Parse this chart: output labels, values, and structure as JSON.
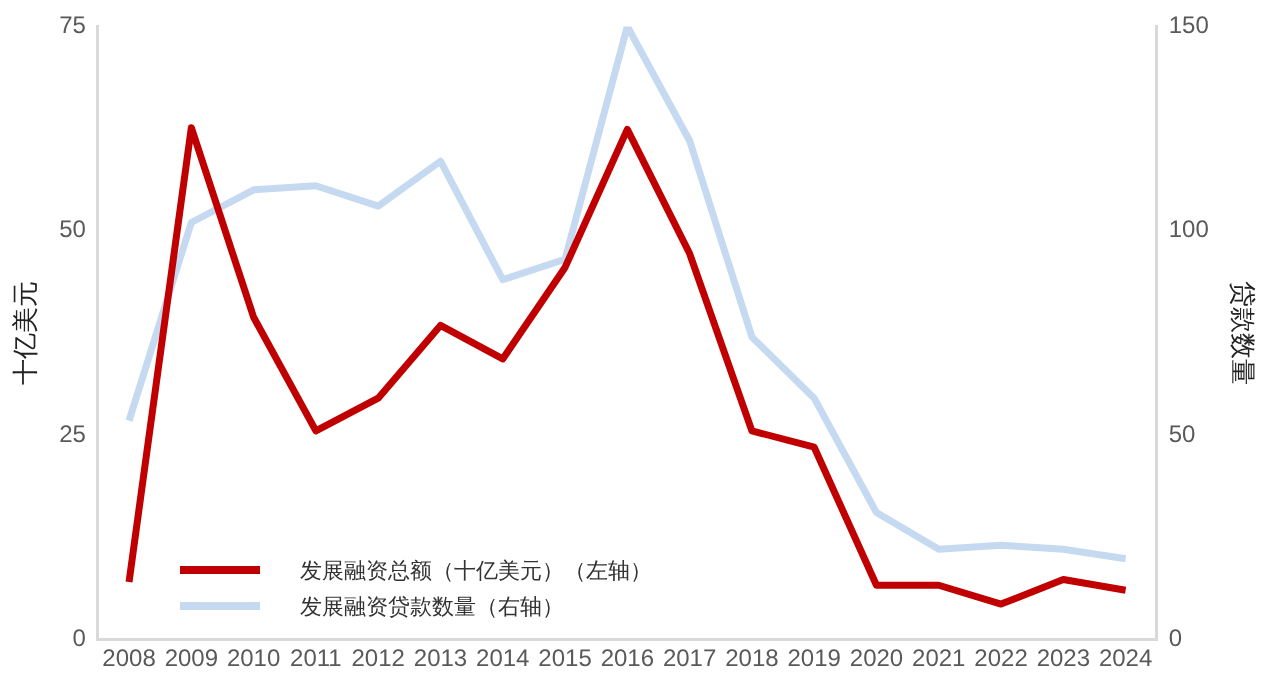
{
  "chart_data": {
    "type": "line",
    "categories": [
      "2008",
      "2009",
      "2010",
      "2011",
      "2012",
      "2013",
      "2014",
      "2015",
      "2016",
      "2017",
      "2018",
      "2019",
      "2020",
      "2021",
      "2022",
      "2023",
      "2024"
    ],
    "ylabel": "十亿美元",
    "y2label": "贷款数量",
    "ylim": [
      0,
      75
    ],
    "yticks": [
      0,
      25,
      50,
      75
    ],
    "y2lim": [
      0,
      150
    ],
    "y2ticks": [
      0,
      50,
      100,
      150
    ],
    "series": [
      {
        "name": "发展融资总额（十亿美元）（左轴）",
        "color": "#c00000",
        "values": [
          7,
          62.6,
          39.4,
          25.5,
          29.5,
          38.4,
          34.3,
          45.5,
          62.4,
          47.2,
          25.5,
          23.5,
          6.6,
          6.6,
          4.3,
          7.3,
          6
        ]
      },
      {
        "name": "发展融资贷款数量（右轴）",
        "color": "#c5d9f1",
        "axis": "y2",
        "values": [
          53.5,
          102,
          110,
          111,
          106,
          117,
          88,
          93,
          150,
          122,
          74,
          59,
          31,
          22,
          23,
          22,
          19.7
        ]
      }
    ],
    "grid": false,
    "legend": "bottom left",
    "marker": "none",
    "line_style": "solid"
  }
}
